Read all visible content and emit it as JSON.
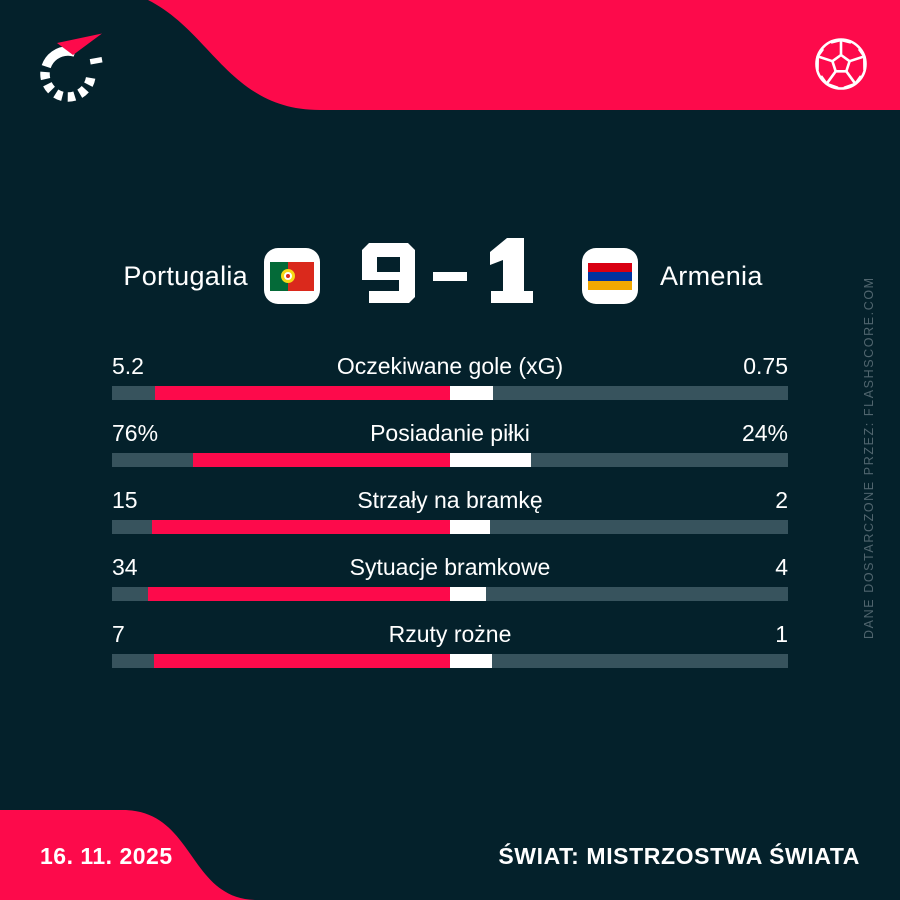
{
  "colors": {
    "background": "#04212b",
    "accent_red": "#fd0a4b",
    "bar_track": "#37535d",
    "bar_home": "#fd0a4b",
    "bar_away": "#ffffff",
    "text_primary": "#ffffff",
    "watermark_text": "#50656e"
  },
  "match": {
    "home_team": "Portugalia",
    "away_team": "Armenia",
    "home_score": "9",
    "away_score": "1",
    "separator": "-"
  },
  "stats": [
    {
      "label": "Oczekiwane gole (xG)",
      "home": "5.2",
      "away": "0.75",
      "home_value": 5.2,
      "away_value": 0.75
    },
    {
      "label": "Posiadanie piłki",
      "home": "76%",
      "away": "24%",
      "home_value": 76,
      "away_value": 24
    },
    {
      "label": "Strzały na bramkę",
      "home": "15",
      "away": "2",
      "home_value": 15,
      "away_value": 2
    },
    {
      "label": "Sytuacje bramkowe",
      "home": "34",
      "away": "4",
      "home_value": 34,
      "away_value": 4
    },
    {
      "label": "Rzuty rożne",
      "home": "7",
      "away": "1",
      "home_value": 7,
      "away_value": 1
    }
  ],
  "watermark": "DANE DOSTARCZONE PRZEZ: FLASHSCORE.COM",
  "footer": {
    "date": "16. 11. 2025",
    "competition": "ŚWIAT: MISTRZOSTWA ŚWIATA"
  },
  "flags": {
    "portugal": {
      "green": "#046a38",
      "red": "#da291c",
      "emblem_ring": "#f7d917",
      "emblem_dot": "#da291c"
    },
    "armenia": {
      "stripes": [
        "#d90012",
        "#0033a0",
        "#f2a800"
      ]
    }
  },
  "chart_data": {
    "type": "bar",
    "title": "Portugalia 9 - 1 Armenia",
    "subtitle": "ŚWIAT: MISTRZOSTWA ŚWIATA, 16. 11. 2025",
    "categories": [
      "Oczekiwane gole (xG)",
      "Posiadanie piłki",
      "Strzały na bramkę",
      "Sytuacje bramkowe",
      "Rzuty rożne"
    ],
    "series": [
      {
        "name": "Portugalia",
        "color": "#fd0a4b",
        "values": [
          5.2,
          76,
          15,
          34,
          7
        ]
      },
      {
        "name": "Armenia",
        "color": "#ffffff",
        "values": [
          0.75,
          24,
          2,
          4,
          1
        ]
      }
    ],
    "layout": "horizontal paired bars on shared track; red home segment grows leftward from track center, white away segment grows rightward; segment length proportional to share of row total; grid off; no axes"
  }
}
